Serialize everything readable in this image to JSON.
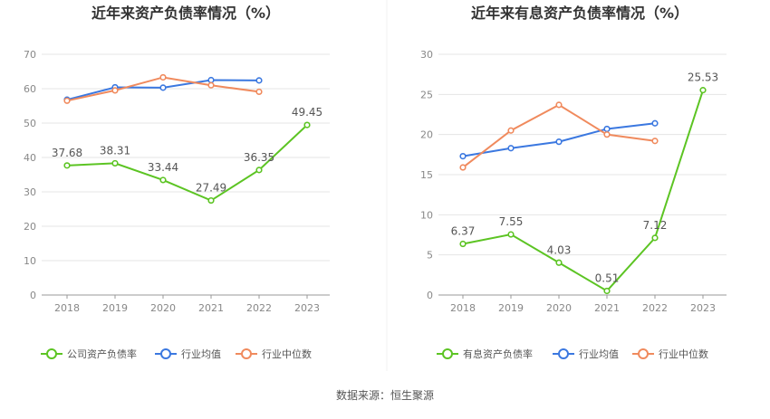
{
  "source_text": "数据来源：恒生聚源",
  "colors": {
    "company": "#5cc423",
    "industry_avg": "#3b78e0",
    "industry_median": "#f08a5d",
    "grid": "#e5e5e5",
    "axis": "#888888",
    "label": "#555555",
    "title": "#333333"
  },
  "chart_data": [
    {
      "type": "line",
      "title": "近年来资产负债率情况（%）",
      "xlabel": "",
      "ylabel": "",
      "categories": [
        "2018",
        "2019",
        "2020",
        "2021",
        "2022",
        "2023"
      ],
      "ylim": [
        0,
        70
      ],
      "yticks": [
        0,
        10,
        20,
        30,
        40,
        50,
        60,
        70
      ],
      "grid": true,
      "legend_position": "bottom",
      "series": [
        {
          "name": "公司资产负债率",
          "color_key": "company",
          "values": [
            37.68,
            38.31,
            33.44,
            27.49,
            36.35,
            49.45
          ],
          "labels": [
            "37.68",
            "38.31",
            "33.44",
            "27.49",
            "36.35",
            "49.45"
          ]
        },
        {
          "name": "行业均值",
          "color_key": "industry_avg",
          "values": [
            56.8,
            60.4,
            60.3,
            62.5,
            62.4,
            null
          ],
          "labels": []
        },
        {
          "name": "行业中位数",
          "color_key": "industry_median",
          "values": [
            56.5,
            59.5,
            63.3,
            61.0,
            59.1,
            null
          ],
          "labels": []
        }
      ]
    },
    {
      "type": "line",
      "title": "近年来有息资产负债率情况（%）",
      "xlabel": "",
      "ylabel": "",
      "categories": [
        "2018",
        "2019",
        "2020",
        "2021",
        "2022",
        "2023"
      ],
      "ylim": [
        0,
        30
      ],
      "yticks": [
        0,
        5,
        10,
        15,
        20,
        25,
        30
      ],
      "grid": true,
      "legend_position": "bottom",
      "series": [
        {
          "name": "有息资产负债率",
          "color_key": "company",
          "values": [
            6.37,
            7.55,
            4.03,
            0.51,
            7.12,
            25.53
          ],
          "labels": [
            "6.37",
            "7.55",
            "4.03",
            "0.51",
            "7.12",
            "25.53"
          ]
        },
        {
          "name": "行业均值",
          "color_key": "industry_avg",
          "values": [
            17.3,
            18.3,
            19.1,
            20.7,
            21.4,
            null
          ],
          "labels": []
        },
        {
          "name": "行业中位数",
          "color_key": "industry_median",
          "values": [
            15.9,
            20.5,
            23.7,
            20.0,
            19.2,
            null
          ],
          "labels": []
        }
      ]
    }
  ]
}
